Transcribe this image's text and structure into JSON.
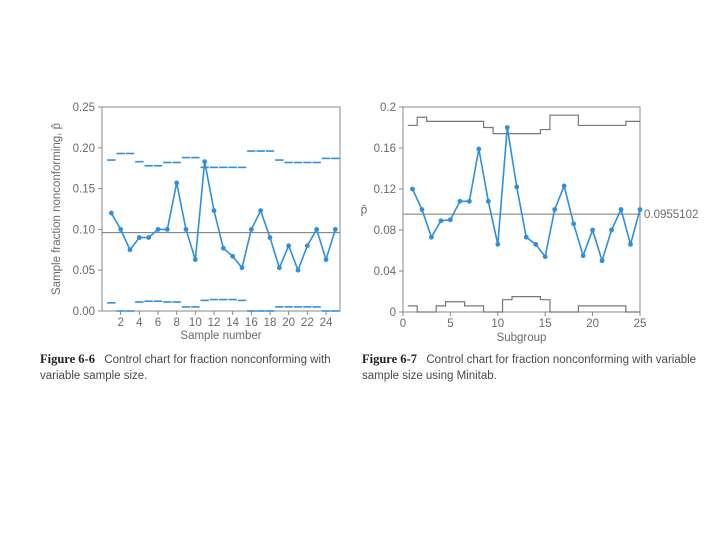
{
  "chart_data": [
    {
      "type": "line",
      "xlabel": "Sample number",
      "ylabel": "Sample fraction nonconforming, p̂",
      "xlim": [
        0,
        25.5
      ],
      "ylim": [
        0,
        0.25
      ],
      "x_ticks": [
        2,
        4,
        6,
        8,
        10,
        12,
        14,
        16,
        18,
        20,
        22,
        24
      ],
      "y_ticks": [
        "0.00",
        "0.05",
        "0.10",
        "0.15",
        "0.20",
        "0.25"
      ],
      "center_line": 0.096,
      "series": [
        {
          "x": [
            1,
            2,
            3,
            4,
            5,
            6,
            7,
            8,
            9,
            10,
            11,
            12,
            13,
            14,
            15,
            16,
            17,
            18,
            19,
            20,
            21,
            22,
            23,
            24,
            25
          ],
          "values": [
            0.12,
            0.1,
            0.075,
            0.09,
            0.09,
            0.1,
            0.1,
            0.157,
            0.1,
            0.063,
            0.183,
            0.123,
            0.077,
            0.067,
            0.053,
            0.1,
            0.123,
            0.09,
            0.053,
            0.08,
            0.05,
            0.08,
            0.1,
            0.063,
            0.1
          ]
        }
      ],
      "ucl": [
        0.185,
        0.193,
        0.193,
        0.183,
        0.178,
        0.178,
        0.182,
        0.182,
        0.188,
        0.188,
        0.176,
        0.176,
        0.176,
        0.176,
        0.176,
        0.196,
        0.196,
        0.196,
        0.185,
        0.182,
        0.182,
        0.182,
        0.182,
        0.187,
        0.187
      ],
      "lcl": [
        0.01,
        0.0,
        0.0,
        0.011,
        0.012,
        0.012,
        0.011,
        0.011,
        0.005,
        0.005,
        0.013,
        0.014,
        0.014,
        0.014,
        0.013,
        0.0,
        0.0,
        0.0,
        0.005,
        0.005,
        0.005,
        0.005,
        0.005,
        0.0,
        0.0
      ]
    },
    {
      "type": "line",
      "xlabel": "Subgroup",
      "ylabel": "p̂",
      "xlim": [
        0,
        25
      ],
      "ylim": [
        0,
        0.2
      ],
      "x_ticks": [
        "0",
        "5",
        "10",
        "15",
        "20",
        "25"
      ],
      "y_ticks": [
        "0",
        "0.04",
        "0.08",
        "0.12",
        "0.16",
        "0.2"
      ],
      "center_line": 0.0955102,
      "center_label": "0.0955102",
      "series": [
        {
          "x": [
            1,
            2,
            3,
            4,
            5,
            6,
            7,
            8,
            9,
            10,
            11,
            12,
            13,
            14,
            15,
            16,
            17,
            18,
            19,
            20,
            21,
            22,
            23,
            24,
            25
          ],
          "values": [
            0.12,
            0.1,
            0.073,
            0.089,
            0.09,
            0.108,
            0.108,
            0.159,
            0.108,
            0.066,
            0.18,
            0.122,
            0.073,
            0.066,
            0.054,
            0.1,
            0.123,
            0.086,
            0.055,
            0.08,
            0.05,
            0.08,
            0.1,
            0.066,
            0.1
          ]
        }
      ],
      "ucl": [
        0.182,
        0.19,
        0.186,
        0.186,
        0.186,
        0.186,
        0.186,
        0.186,
        0.18,
        0.174,
        0.174,
        0.174,
        0.174,
        0.174,
        0.178,
        0.192,
        0.192,
        0.192,
        0.182,
        0.182,
        0.182,
        0.182,
        0.182,
        0.186,
        0.186
      ],
      "lcl": [
        0.006,
        0.0,
        0.0,
        0.006,
        0.01,
        0.01,
        0.006,
        0.006,
        0.0,
        0.0,
        0.012,
        0.015,
        0.015,
        0.015,
        0.012,
        0.0,
        0.0,
        0.0,
        0.006,
        0.006,
        0.006,
        0.006,
        0.006,
        0.0,
        0.0
      ]
    }
  ],
  "captions": [
    {
      "label": "Figure 6-6",
      "text": "Control chart for fraction nonconforming with variable sample size."
    },
    {
      "label": "Figure 6-7",
      "text": "Control chart for fraction nonconforming with variable sample size using Minitab."
    }
  ],
  "colors": {
    "data": "#2f8fdc",
    "frame": "#888888",
    "limits": "#2f8fdc",
    "limits2": "#777777"
  }
}
